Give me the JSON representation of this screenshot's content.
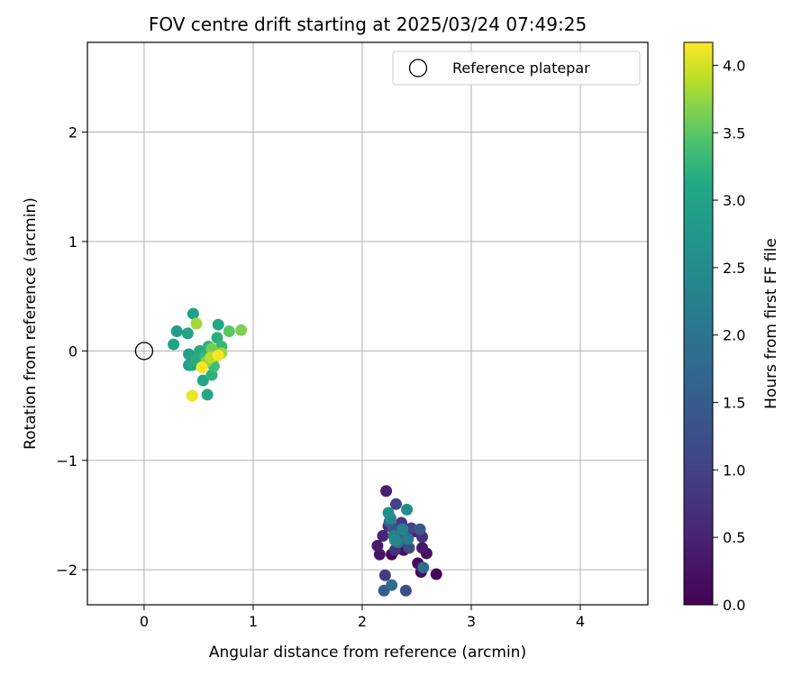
{
  "chart_data": {
    "type": "scatter",
    "title": "FOV centre drift starting at 2025/03/24 07:49:25",
    "xlabel": "Angular distance from reference (arcmin)",
    "ylabel": "Rotation from reference (arcmin)",
    "xlim": [
      -0.52,
      4.62
    ],
    "ylim": [
      -2.32,
      2.82
    ],
    "xticks": [
      0,
      1,
      2,
      3,
      4
    ],
    "xtick_labels": [
      "0",
      "1",
      "2",
      "3",
      "4"
    ],
    "yticks": [
      -2,
      -1,
      0,
      1,
      2
    ],
    "ytick_labels": [
      "−2",
      "−1",
      "0",
      "1",
      "2"
    ],
    "grid": true,
    "legend": {
      "placement": "top-right",
      "entries": [
        {
          "label": "Reference platepar",
          "marker": "open-circle",
          "color": "#000000"
        }
      ]
    },
    "reference_point": {
      "x": 0,
      "y": 0
    },
    "colorbar": {
      "label": "Hours from first FF file",
      "min": 0.0,
      "max": 4.17,
      "ticks": [
        0.0,
        0.5,
        1.0,
        1.5,
        2.0,
        2.5,
        3.0,
        3.5,
        4.0
      ],
      "tick_labels": [
        "0.0",
        "0.5",
        "1.0",
        "1.5",
        "2.0",
        "2.5",
        "3.0",
        "3.5",
        "4.0"
      ],
      "colormap": "viridis"
    },
    "points": [
      {
        "x": 2.27,
        "y": -1.86,
        "t": 0.05
      },
      {
        "x": 2.68,
        "y": -2.04,
        "t": 0.07
      },
      {
        "x": 2.51,
        "y": -1.94,
        "t": 0.12
      },
      {
        "x": 2.54,
        "y": -2.02,
        "t": 0.15
      },
      {
        "x": 2.59,
        "y": -1.85,
        "t": 0.18
      },
      {
        "x": 2.38,
        "y": -1.82,
        "t": 0.22
      },
      {
        "x": 2.16,
        "y": -1.86,
        "t": 0.3
      },
      {
        "x": 2.55,
        "y": -1.8,
        "t": 0.35
      },
      {
        "x": 2.14,
        "y": -1.78,
        "t": 0.4
      },
      {
        "x": 2.22,
        "y": -1.28,
        "t": 0.45
      },
      {
        "x": 2.48,
        "y": -1.65,
        "t": 0.5
      },
      {
        "x": 2.19,
        "y": -1.69,
        "t": 0.55
      },
      {
        "x": 2.4,
        "y": -1.76,
        "t": 0.6
      },
      {
        "x": 2.24,
        "y": -1.6,
        "t": 0.65
      },
      {
        "x": 2.55,
        "y": -1.7,
        "t": 0.7
      },
      {
        "x": 2.3,
        "y": -1.82,
        "t": 0.75
      },
      {
        "x": 2.36,
        "y": -1.57,
        "t": 0.85
      },
      {
        "x": 2.21,
        "y": -2.05,
        "t": 0.9
      },
      {
        "x": 2.31,
        "y": -1.4,
        "t": 1.0
      },
      {
        "x": 2.45,
        "y": -1.62,
        "t": 1.05
      },
      {
        "x": 2.33,
        "y": -1.72,
        "t": 1.15
      },
      {
        "x": 2.4,
        "y": -2.19,
        "t": 1.2
      },
      {
        "x": 2.43,
        "y": -1.8,
        "t": 1.25
      },
      {
        "x": 2.28,
        "y": -1.62,
        "t": 1.35
      },
      {
        "x": 2.53,
        "y": -1.63,
        "t": 1.45
      },
      {
        "x": 2.2,
        "y": -2.19,
        "t": 1.5
      },
      {
        "x": 2.25,
        "y": -1.56,
        "t": 1.6
      },
      {
        "x": 2.38,
        "y": -1.69,
        "t": 1.7
      },
      {
        "x": 2.56,
        "y": -1.98,
        "t": 1.8
      },
      {
        "x": 2.27,
        "y": -2.14,
        "t": 1.9
      },
      {
        "x": 2.33,
        "y": -1.75,
        "t": 2.0
      },
      {
        "x": 2.42,
        "y": -1.72,
        "t": 2.1
      },
      {
        "x": 2.29,
        "y": -1.69,
        "t": 2.2
      },
      {
        "x": 2.37,
        "y": -1.63,
        "t": 2.3
      },
      {
        "x": 2.26,
        "y": -1.53,
        "t": 2.4
      },
      {
        "x": 2.3,
        "y": -1.73,
        "t": 2.45
      },
      {
        "x": 2.41,
        "y": -1.45,
        "t": 2.5
      },
      {
        "x": 2.24,
        "y": -1.48,
        "t": 2.55
      },
      {
        "x": 0.41,
        "y": -0.13,
        "t": 2.85
      },
      {
        "x": 0.3,
        "y": 0.18,
        "t": 2.9
      },
      {
        "x": 0.45,
        "y": 0.34,
        "t": 2.92
      },
      {
        "x": 0.41,
        "y": -0.03,
        "t": 2.95
      },
      {
        "x": 0.4,
        "y": 0.16,
        "t": 3.0
      },
      {
        "x": 0.27,
        "y": 0.06,
        "t": 3.02
      },
      {
        "x": 0.58,
        "y": -0.4,
        "t": 3.05
      },
      {
        "x": 0.54,
        "y": -0.27,
        "t": 3.08
      },
      {
        "x": 0.44,
        "y": -0.13,
        "t": 3.1
      },
      {
        "x": 0.68,
        "y": 0.24,
        "t": 3.12
      },
      {
        "x": 0.51,
        "y": 0.0,
        "t": 3.15
      },
      {
        "x": 0.48,
        "y": -0.08,
        "t": 3.18
      },
      {
        "x": 0.67,
        "y": 0.12,
        "t": 3.2
      },
      {
        "x": 0.62,
        "y": -0.22,
        "t": 3.22
      },
      {
        "x": 0.59,
        "y": 0.04,
        "t": 3.25
      },
      {
        "x": 0.56,
        "y": -0.05,
        "t": 3.28
      },
      {
        "x": 0.71,
        "y": 0.04,
        "t": 3.3
      },
      {
        "x": 0.64,
        "y": -0.14,
        "t": 3.35
      },
      {
        "x": 0.78,
        "y": 0.18,
        "t": 3.5
      },
      {
        "x": 0.66,
        "y": -0.05,
        "t": 3.55
      },
      {
        "x": 0.62,
        "y": 0.02,
        "t": 3.6
      },
      {
        "x": 0.89,
        "y": 0.19,
        "t": 3.65
      },
      {
        "x": 0.57,
        "y": -0.1,
        "t": 3.7
      },
      {
        "x": 0.71,
        "y": -0.02,
        "t": 3.75
      },
      {
        "x": 0.48,
        "y": 0.25,
        "t": 3.8
      },
      {
        "x": 0.61,
        "y": -0.06,
        "t": 3.9
      },
      {
        "x": 0.53,
        "y": -0.15,
        "t": 4.0
      },
      {
        "x": 0.44,
        "y": -0.41,
        "t": 4.1
      },
      {
        "x": 0.68,
        "y": -0.04,
        "t": 4.13
      },
      {
        "x": 0.53,
        "y": -0.15,
        "t": 4.17
      }
    ]
  }
}
